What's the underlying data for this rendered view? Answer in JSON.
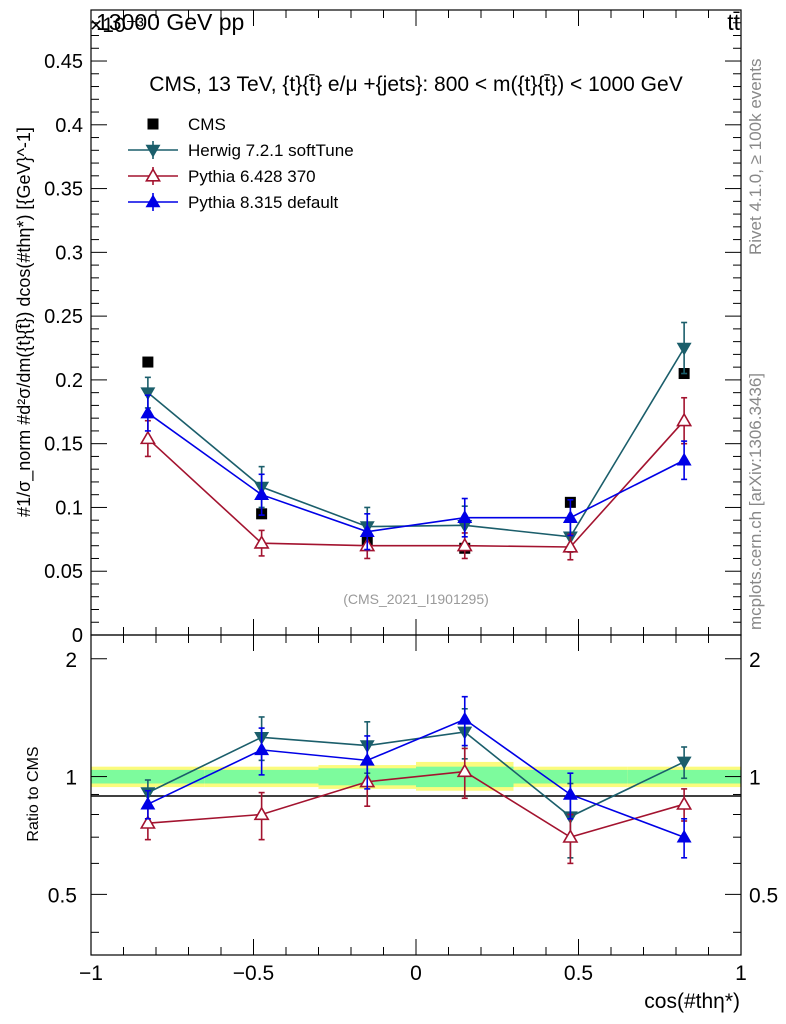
{
  "header": {
    "energy_label": "13000 GeV pp",
    "process_label": "tt̄",
    "exponent_label": "×10⁻³"
  },
  "side_labels": {
    "rivet": "Rivet 4.1.0, ≥ 100k events",
    "mcplots": "mcplots.cern.ch [arXiv:1306.3436]"
  },
  "colors": {
    "cms": "#000000",
    "herwig": "#1b5e6b",
    "pythia6": "#a3132f",
    "pythia8": "#0000e6",
    "band_inner": "#7dfb9d",
    "band_outer": "#fbfb7d"
  },
  "chart_data": [
    {
      "type": "scatter",
      "panel": "main",
      "title": "CMS, 13 TeV, {t}{t̄} e/μ +{jets}: 800 < m({t}{t̄}) < 1000 GeV",
      "watermark": "(CMS_2021_I1901295)",
      "ylabel": "#1/σnorm #d²σ/dm({t}{t̄}) dcos(#thη*) [{GeV}⁻¹]",
      "ylabel_display": "#1/σ_norm #d²σ/dm({t}{t̄}) dcos(#thη*) [{GeV}^-1]",
      "xlim": [
        -1,
        1
      ],
      "ylim": [
        0,
        0.00049
      ],
      "y_scale": 0.001,
      "yticks": [
        0,
        0.05,
        0.1,
        0.15,
        0.2,
        0.25,
        0.3,
        0.35,
        0.4,
        0.45
      ],
      "ytick_labels": [
        "0",
        "0.05",
        "0.1",
        "0.15",
        "0.2",
        "0.25",
        "0.3",
        "0.35",
        "0.4",
        "0.45"
      ],
      "legend": [
        "CMS",
        "Herwig 7.2.1 softTune",
        "Pythia 6.428 370",
        "Pythia 8.315 default"
      ],
      "legend_position": "top-left",
      "series": [
        {
          "name": "CMS",
          "marker": "square",
          "x": [
            -0.825,
            -0.475,
            -0.15,
            0.15,
            0.475,
            0.825
          ],
          "values": [
            0.000214,
            9.5e-05,
            7.4e-05,
            6.8e-05,
            0.000104,
            0.000205
          ],
          "errors": [
            0,
            0,
            0,
            0,
            0,
            0
          ]
        },
        {
          "name": "Herwig 7.2.1 softTune",
          "marker": "triangle-down",
          "x": [
            -0.825,
            -0.475,
            -0.15,
            0.15,
            0.475,
            0.825
          ],
          "values": [
            0.00019,
            0.000116,
            8.5e-05,
            8.6e-05,
            7.7e-05,
            0.000225
          ],
          "errors": [
            1.2e-05,
            1.6e-05,
            1.5e-05,
            1.5e-05,
            1.2e-05,
            2e-05
          ]
        },
        {
          "name": "Pythia 6.428 370",
          "marker": "triangle-up-open",
          "x": [
            -0.825,
            -0.475,
            -0.15,
            0.15,
            0.475,
            0.825
          ],
          "values": [
            0.000154,
            7.2e-05,
            7e-05,
            7e-05,
            6.9e-05,
            0.000168
          ],
          "errors": [
            1.4e-05,
            1e-05,
            1e-05,
            1e-05,
            1e-05,
            1.8e-05
          ]
        },
        {
          "name": "Pythia 8.315 default",
          "marker": "triangle-up",
          "x": [
            -0.825,
            -0.475,
            -0.15,
            0.15,
            0.475,
            0.825
          ],
          "values": [
            0.000174,
            0.00011,
            8.1e-05,
            9.2e-05,
            9.2e-05,
            0.000137
          ],
          "errors": [
            1.4e-05,
            1.6e-05,
            1.4e-05,
            1.5e-05,
            1.4e-05,
            1.5e-05
          ]
        }
      ]
    },
    {
      "type": "scatter",
      "panel": "ratio",
      "ylabel": "Ratio to CMS",
      "xlabel": "cos(#thη*)",
      "xlabel_display": "cos(#thη*)",
      "xlim": [
        -1,
        1
      ],
      "ylim": [
        0.35,
        2.3
      ],
      "xticks": [
        -1,
        -0.5,
        0,
        0.5,
        1
      ],
      "xtick_labels": [
        "−1",
        "−0.5",
        "0",
        "0.5",
        "1"
      ],
      "yticks": [
        0.5,
        1,
        2
      ],
      "ytick_labels": [
        "0.5",
        "1",
        "2"
      ],
      "band_edges": [
        -1,
        -0.65,
        -0.3,
        0,
        0.3,
        0.65,
        1
      ],
      "band_inner": [
        [
          0.96,
          1.04
        ],
        [
          0.96,
          1.04
        ],
        [
          0.95,
          1.05
        ],
        [
          0.94,
          1.06
        ],
        [
          0.96,
          1.04
        ],
        [
          0.96,
          1.04
        ]
      ],
      "band_outer": [
        [
          0.94,
          1.06
        ],
        [
          0.94,
          1.06
        ],
        [
          0.93,
          1.07
        ],
        [
          0.92,
          1.09
        ],
        [
          0.94,
          1.06
        ],
        [
          0.94,
          1.06
        ]
      ],
      "series": [
        {
          "name": "Herwig 7.2.1 softTune",
          "marker": "triangle-down",
          "x": [
            -0.825,
            -0.475,
            -0.15,
            0.15,
            0.475,
            0.825
          ],
          "values": [
            0.91,
            1.26,
            1.2,
            1.3,
            0.79,
            1.09
          ],
          "errors": [
            0.07,
            0.16,
            0.18,
            0.19,
            0.17,
            0.1
          ]
        },
        {
          "name": "Pythia 6.428 370",
          "marker": "triangle-up-open",
          "x": [
            -0.825,
            -0.475,
            -0.15,
            0.15,
            0.475,
            0.825
          ],
          "values": [
            0.76,
            0.8,
            0.97,
            1.03,
            0.7,
            0.85
          ],
          "errors": [
            0.07,
            0.11,
            0.13,
            0.15,
            0.1,
            0.08
          ]
        },
        {
          "name": "Pythia 8.315 default",
          "marker": "triangle-up",
          "x": [
            -0.825,
            -0.475,
            -0.15,
            0.15,
            0.475,
            0.825
          ],
          "values": [
            0.85,
            1.17,
            1.1,
            1.4,
            0.9,
            0.7
          ],
          "errors": [
            0.07,
            0.16,
            0.17,
            0.2,
            0.12,
            0.08
          ]
        }
      ]
    }
  ]
}
